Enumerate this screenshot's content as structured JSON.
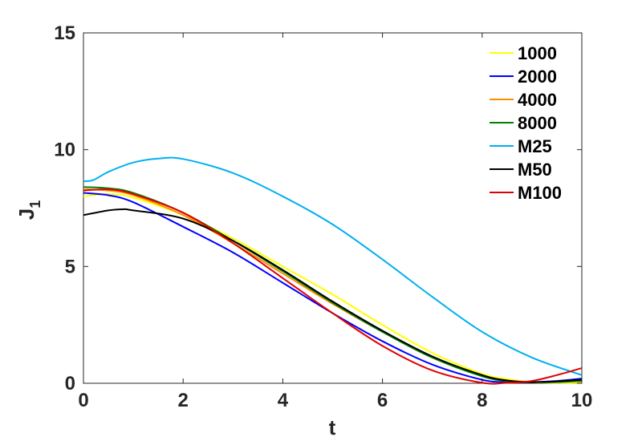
{
  "chart_data": {
    "type": "line",
    "xlabel": "t",
    "ylabel": "J",
    "ylabel_subscript": "1",
    "xlim": [
      0,
      10
    ],
    "ylim": [
      0,
      15
    ],
    "xticks": [
      0,
      2,
      4,
      6,
      8,
      10
    ],
    "yticks": [
      0,
      5,
      10,
      15
    ],
    "grid": false,
    "legend_position": "top-right",
    "series": [
      {
        "name": "1000",
        "color": "#ffff00",
        "x": [
          0,
          0.5,
          1,
          2,
          3,
          4,
          5,
          6,
          7,
          8,
          8.5,
          9,
          9.5,
          10
        ],
        "y": [
          8.0,
          8.1,
          7.95,
          7.2,
          6.2,
          5.0,
          3.8,
          2.5,
          1.3,
          0.4,
          0.18,
          0.05,
          0.02,
          0.03
        ]
      },
      {
        "name": "2000",
        "color": "#0000ff",
        "x": [
          0,
          0.5,
          1,
          2,
          3,
          4,
          5,
          6,
          7,
          8,
          8.5,
          9,
          9.5,
          10
        ],
        "y": [
          8.15,
          8.05,
          7.75,
          6.7,
          5.6,
          4.3,
          3.0,
          1.8,
          0.8,
          0.15,
          0.05,
          0.05,
          0.1,
          0.2
        ]
      },
      {
        "name": "4000",
        "color": "#ff8c00",
        "x": [
          0,
          0.5,
          1,
          2,
          3,
          4,
          5,
          6,
          7,
          8,
          8.5,
          9,
          9.5,
          10
        ],
        "y": [
          8.3,
          8.25,
          8.05,
          7.2,
          6.0,
          4.7,
          3.4,
          2.2,
          1.1,
          0.35,
          0.12,
          0.05,
          0.05,
          0.1
        ]
      },
      {
        "name": "8000",
        "color": "#008000",
        "x": [
          0,
          0.5,
          1,
          2,
          3,
          4,
          5,
          6,
          7,
          8,
          8.5,
          9,
          9.5,
          10
        ],
        "y": [
          8.4,
          8.35,
          8.15,
          7.3,
          6.1,
          4.8,
          3.45,
          2.2,
          1.1,
          0.3,
          0.1,
          0.05,
          0.05,
          0.1
        ]
      },
      {
        "name": "M25",
        "color": "#00b0f0",
        "x": [
          0,
          0.2,
          0.5,
          1,
          1.5,
          2,
          3,
          4,
          5,
          6,
          7,
          8,
          9,
          10
        ],
        "y": [
          8.65,
          8.7,
          9.05,
          9.45,
          9.62,
          9.6,
          9.0,
          8.0,
          6.8,
          5.3,
          3.7,
          2.2,
          1.1,
          0.35
        ]
      },
      {
        "name": "M50",
        "color": "#000000",
        "x": [
          0,
          0.5,
          0.8,
          1,
          2,
          3,
          4,
          5,
          6,
          7,
          8,
          8.5,
          9,
          9.5,
          10
        ],
        "y": [
          7.2,
          7.4,
          7.45,
          7.4,
          7.05,
          6.1,
          4.85,
          3.5,
          2.25,
          1.15,
          0.35,
          0.12,
          0.05,
          0.08,
          0.15
        ]
      },
      {
        "name": "M100",
        "color": "#e00000",
        "x": [
          0,
          0.5,
          1,
          2,
          3,
          4,
          5,
          6,
          7,
          8,
          8.5,
          9,
          9.5,
          10
        ],
        "y": [
          8.25,
          8.3,
          8.1,
          7.3,
          6.0,
          4.5,
          3.0,
          1.6,
          0.55,
          0.02,
          0.02,
          0.1,
          0.35,
          0.65
        ]
      }
    ]
  }
}
